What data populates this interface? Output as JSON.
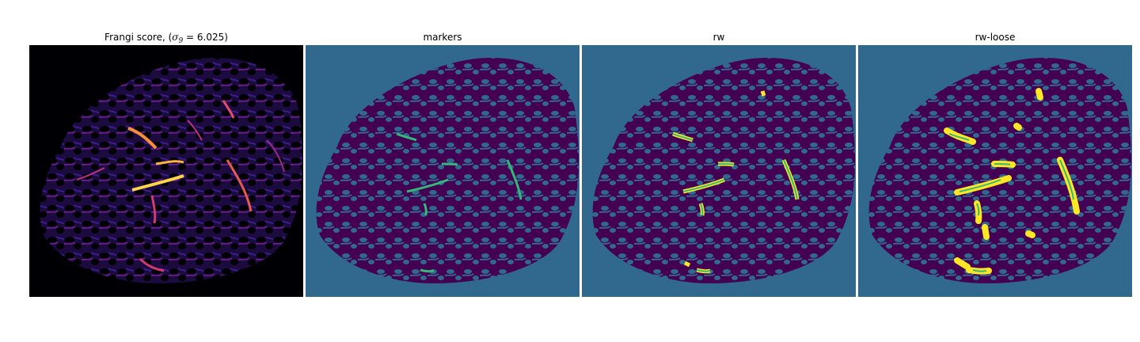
{
  "figure": {
    "panels": [
      {
        "id": "frangi",
        "title_prefix": "Frangi score, (",
        "title_symbol": "σ",
        "title_subscript": "9",
        "title_suffix": " = 6.025)",
        "background": "#000000",
        "colormap": "magma"
      },
      {
        "id": "markers",
        "title": "markers",
        "background": "#31688e",
        "foreground": "#440154",
        "marker_color": "#35b779"
      },
      {
        "id": "rw",
        "title": "rw",
        "background": "#31688e",
        "foreground": "#440154",
        "marker_color": "#35b779",
        "highlight_color": "#fde725"
      },
      {
        "id": "rw-loose",
        "title": "rw-loose",
        "background": "#31688e",
        "foreground": "#440154",
        "marker_color": "#35b779",
        "highlight_color": "#fde725"
      }
    ]
  }
}
